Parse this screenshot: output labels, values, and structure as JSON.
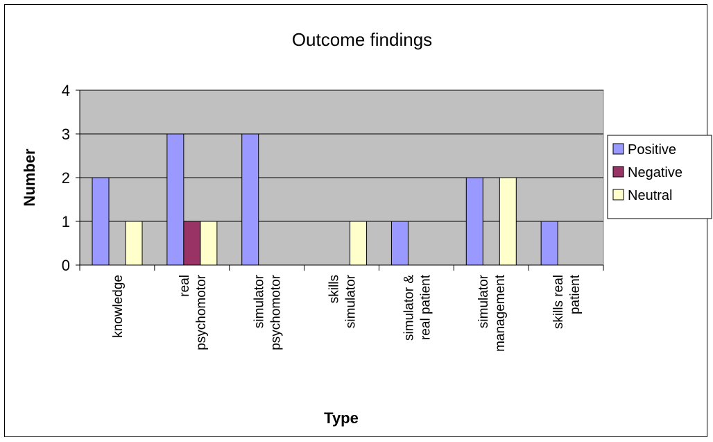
{
  "chart_data": {
    "type": "bar",
    "title": "Outcome findings",
    "xlabel": "Type",
    "ylabel": "Number",
    "ylim": [
      0,
      4
    ],
    "yticks": [
      0,
      1,
      2,
      3,
      4
    ],
    "grid": true,
    "legend": "right",
    "categories": [
      [
        "knowledge"
      ],
      [
        "real",
        "psychomotor"
      ],
      [
        "simulator",
        "psychomotor"
      ],
      [
        "skills",
        "simulator"
      ],
      [
        "simulator &",
        "real patient"
      ],
      [
        "simulator",
        "management"
      ],
      [
        "skills real",
        "patient"
      ]
    ],
    "series": [
      {
        "name": "Positive",
        "color": "#9999ff",
        "values": [
          2,
          3,
          3,
          0,
          1,
          2,
          1
        ]
      },
      {
        "name": "Negative",
        "color": "#993366",
        "values": [
          0,
          1,
          0,
          0,
          0,
          0,
          0
        ]
      },
      {
        "name": "Neutral",
        "color": "#ffffcc",
        "values": [
          1,
          1,
          0,
          1,
          0,
          2,
          0
        ]
      }
    ],
    "plot_background": "#c0c0c0"
  }
}
